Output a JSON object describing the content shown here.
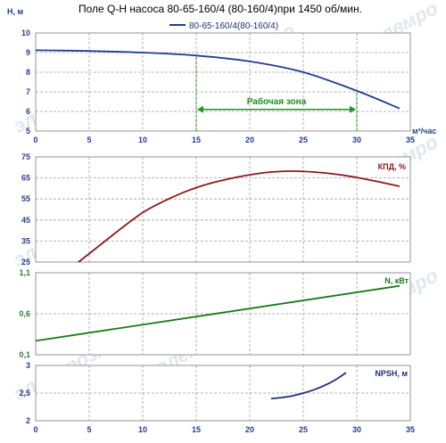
{
  "title": "Поле Q-H насоса 80-65-160/4 (80-160/4)при 1450 об/мин.",
  "legend": {
    "series": "80-65-160/4(80-160/4)"
  },
  "watermark": "элекмрозлвмро",
  "colors": {
    "head": "#1f3f8f",
    "efficiency": "#8b1a1a",
    "power": "#1a7a1a",
    "npsh": "#1f2f7a",
    "zone": "#1a9a1a",
    "x_ticks": "#1f3f8f"
  },
  "chart_data": [
    {
      "id": "qh",
      "type": "line",
      "ylabel": "H, м",
      "xlabel": "м³/час",
      "xlim": [
        0,
        35
      ],
      "ylim": [
        5,
        10
      ],
      "x_ticks": [
        0,
        5,
        10,
        15,
        20,
        25,
        30,
        35
      ],
      "y_ticks": [
        5,
        6,
        7,
        8,
        9,
        10
      ],
      "grid": true,
      "series": [
        {
          "name": "80-65-160/4(80-160/4)",
          "x": [
            0,
            5,
            10,
            15,
            20,
            25,
            30,
            34
          ],
          "values": [
            9.12,
            9.08,
            9.0,
            8.85,
            8.55,
            8.0,
            7.05,
            6.15
          ]
        }
      ],
      "annotation": {
        "label": "Рабочая зона",
        "x_start": 15,
        "x_end": 30,
        "y": 6.1
      }
    },
    {
      "id": "eff",
      "type": "line",
      "ylabel": "КПД, %",
      "xlim": [
        0,
        35
      ],
      "ylim": [
        25,
        75
      ],
      "x_ticks": [
        0,
        5,
        10,
        15,
        20,
        25,
        30,
        35
      ],
      "y_ticks": [
        25,
        35,
        45,
        55,
        65,
        75
      ],
      "grid": true,
      "series": [
        {
          "x": [
            4,
            6,
            8,
            10,
            12,
            14,
            16,
            18,
            20,
            22,
            24,
            26,
            28,
            30,
            32,
            34
          ],
          "values": [
            25,
            33,
            41,
            48.5,
            54,
            58.5,
            62,
            64.5,
            66.5,
            67.8,
            68.2,
            67.8,
            66.8,
            65.2,
            63.2,
            61
          ]
        }
      ]
    },
    {
      "id": "power",
      "type": "line",
      "ylabel": "N, кВт",
      "xlim": [
        0,
        35
      ],
      "ylim": [
        0.1,
        1.1
      ],
      "x_ticks": [
        0,
        5,
        10,
        15,
        20,
        25,
        30,
        35
      ],
      "y_ticks": [
        0.1,
        0.6,
        1.1
      ],
      "y_tick_labels": [
        "0,1",
        "0,6",
        "1,1"
      ],
      "grid": true,
      "series": [
        {
          "x": [
            0,
            34
          ],
          "values": [
            0.27,
            0.94
          ]
        }
      ]
    },
    {
      "id": "npsh",
      "type": "line",
      "ylabel": "NPSH, м",
      "xlim": [
        0,
        35
      ],
      "ylim": [
        2,
        3
      ],
      "x_ticks": [
        0,
        5,
        10,
        15,
        20,
        25,
        30,
        35
      ],
      "y_ticks": [
        2,
        2.5,
        3
      ],
      "y_tick_labels": [
        "2",
        "2,5",
        "3"
      ],
      "grid": true,
      "series": [
        {
          "x": [
            22,
            23,
            24,
            25,
            26,
            27,
            28,
            29
          ],
          "values": [
            2.4,
            2.42,
            2.45,
            2.5,
            2.56,
            2.64,
            2.74,
            2.87
          ]
        }
      ]
    }
  ]
}
